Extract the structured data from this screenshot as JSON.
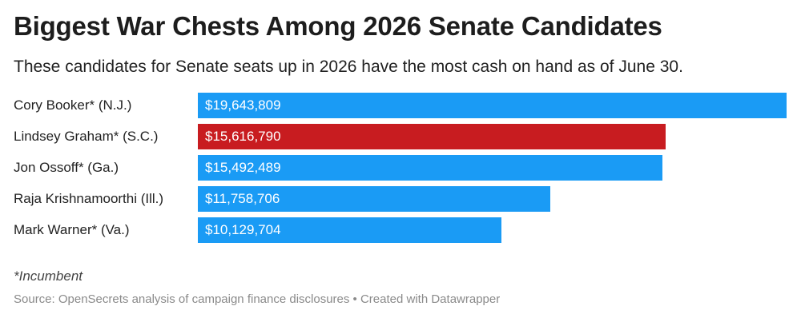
{
  "title": "Biggest War Chests Among 2026 Senate Candidates",
  "subtitle": "These candidates for Senate seats up in 2026 have the most cash on hand as of June 30.",
  "chart_data": {
    "type": "bar",
    "orientation": "horizontal",
    "categories": [
      "Cory Booker* (N.J.)",
      "Lindsey Graham* (S.C.)",
      "Jon Ossoff* (Ga.)",
      "Raja Krishnamoorthi (Ill.)",
      "Mark Warner* (Va.)"
    ],
    "values": [
      19643809,
      15616790,
      15492489,
      11758706,
      10129704
    ],
    "value_labels": [
      "$19,643,809",
      "$15,616,790",
      "$15,492,489",
      "$11,758,706",
      "$10,129,704"
    ],
    "bar_colors": [
      "#1a9bf5",
      "#c81c20",
      "#1a9bf5",
      "#1a9bf5",
      "#1a9bf5"
    ],
    "xlim": [
      0,
      19643809
    ],
    "grid": false,
    "legend": "none"
  },
  "note": "*Incumbent",
  "source": "Source: OpenSecrets analysis of campaign finance disclosures • Created with Datawrapper"
}
